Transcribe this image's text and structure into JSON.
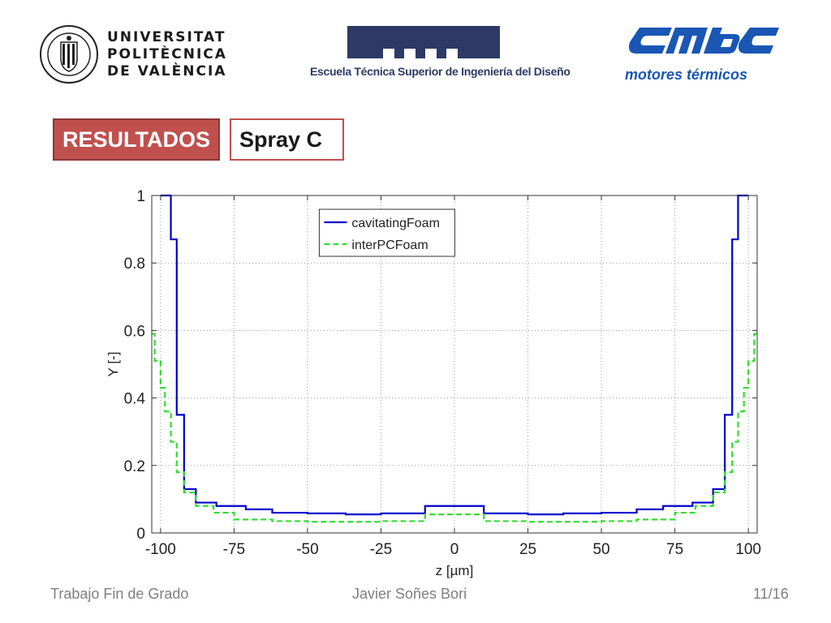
{
  "header": {
    "upv": {
      "lines": [
        "UNIVERSITAT",
        "POLITÈCNICA",
        "DE VALÈNCIA"
      ],
      "seal_icon": "upv-seal-icon"
    },
    "etsid": {
      "text": "Escuela Técnica Superior de Ingeniería del Diseño",
      "color": "#2d3a66"
    },
    "cmt": {
      "text": "motores térmicos",
      "color": "#1a56b4"
    }
  },
  "tags": {
    "resultados": "RESULTADOS",
    "spray": "Spray C",
    "accent": "#c0504d"
  },
  "chart_data": {
    "type": "line",
    "title": "",
    "xlabel": "z [µm]",
    "ylabel": "Y [-]",
    "xlim": [
      -103,
      103
    ],
    "ylim": [
      0,
      1
    ],
    "xticks": [
      -100,
      -75,
      -50,
      -25,
      0,
      25,
      50,
      75,
      100
    ],
    "yticks": [
      0,
      0.2,
      0.4,
      0.6,
      0.8,
      1
    ],
    "grid": true,
    "legend_position": "top-center",
    "series": [
      {
        "name": "cavitatingFoam",
        "color": "#0000cc",
        "style": "solid",
        "step": true,
        "x": [
          -100,
          -96.5,
          -94.5,
          -92,
          -88,
          -81,
          -71,
          -62,
          -50,
          -37,
          -25,
          -10,
          10,
          25,
          37,
          50,
          62,
          71,
          81,
          88,
          92,
          94.5,
          96.5,
          100
        ],
        "y": [
          1.0,
          0.87,
          0.35,
          0.13,
          0.09,
          0.08,
          0.07,
          0.06,
          0.058,
          0.055,
          0.058,
          0.08,
          0.058,
          0.055,
          0.058,
          0.06,
          0.07,
          0.08,
          0.09,
          0.13,
          0.35,
          0.87,
          1.0,
          1.0
        ]
      },
      {
        "name": "interPCFoam",
        "color": "#33dd33",
        "style": "dashed",
        "step": true,
        "x": [
          -103,
          -102,
          -100,
          -98.5,
          -96.5,
          -94.5,
          -92,
          -88,
          -82,
          -75,
          -62,
          -50,
          -37,
          -25,
          -10,
          10,
          25,
          37,
          50,
          62,
          75,
          82,
          88,
          92,
          94.5,
          96.5,
          98.5,
          100,
          102,
          103
        ],
        "y": [
          0.59,
          0.51,
          0.43,
          0.36,
          0.27,
          0.18,
          0.12,
          0.08,
          0.06,
          0.04,
          0.035,
          0.033,
          0.033,
          0.035,
          0.055,
          0.035,
          0.033,
          0.033,
          0.035,
          0.04,
          0.06,
          0.08,
          0.12,
          0.18,
          0.27,
          0.36,
          0.43,
          0.51,
          0.59,
          0.59
        ]
      }
    ]
  },
  "footer": {
    "left": "Trabajo Fin de Grado",
    "center": "Javier Soñes Bori",
    "page": "11/16"
  }
}
